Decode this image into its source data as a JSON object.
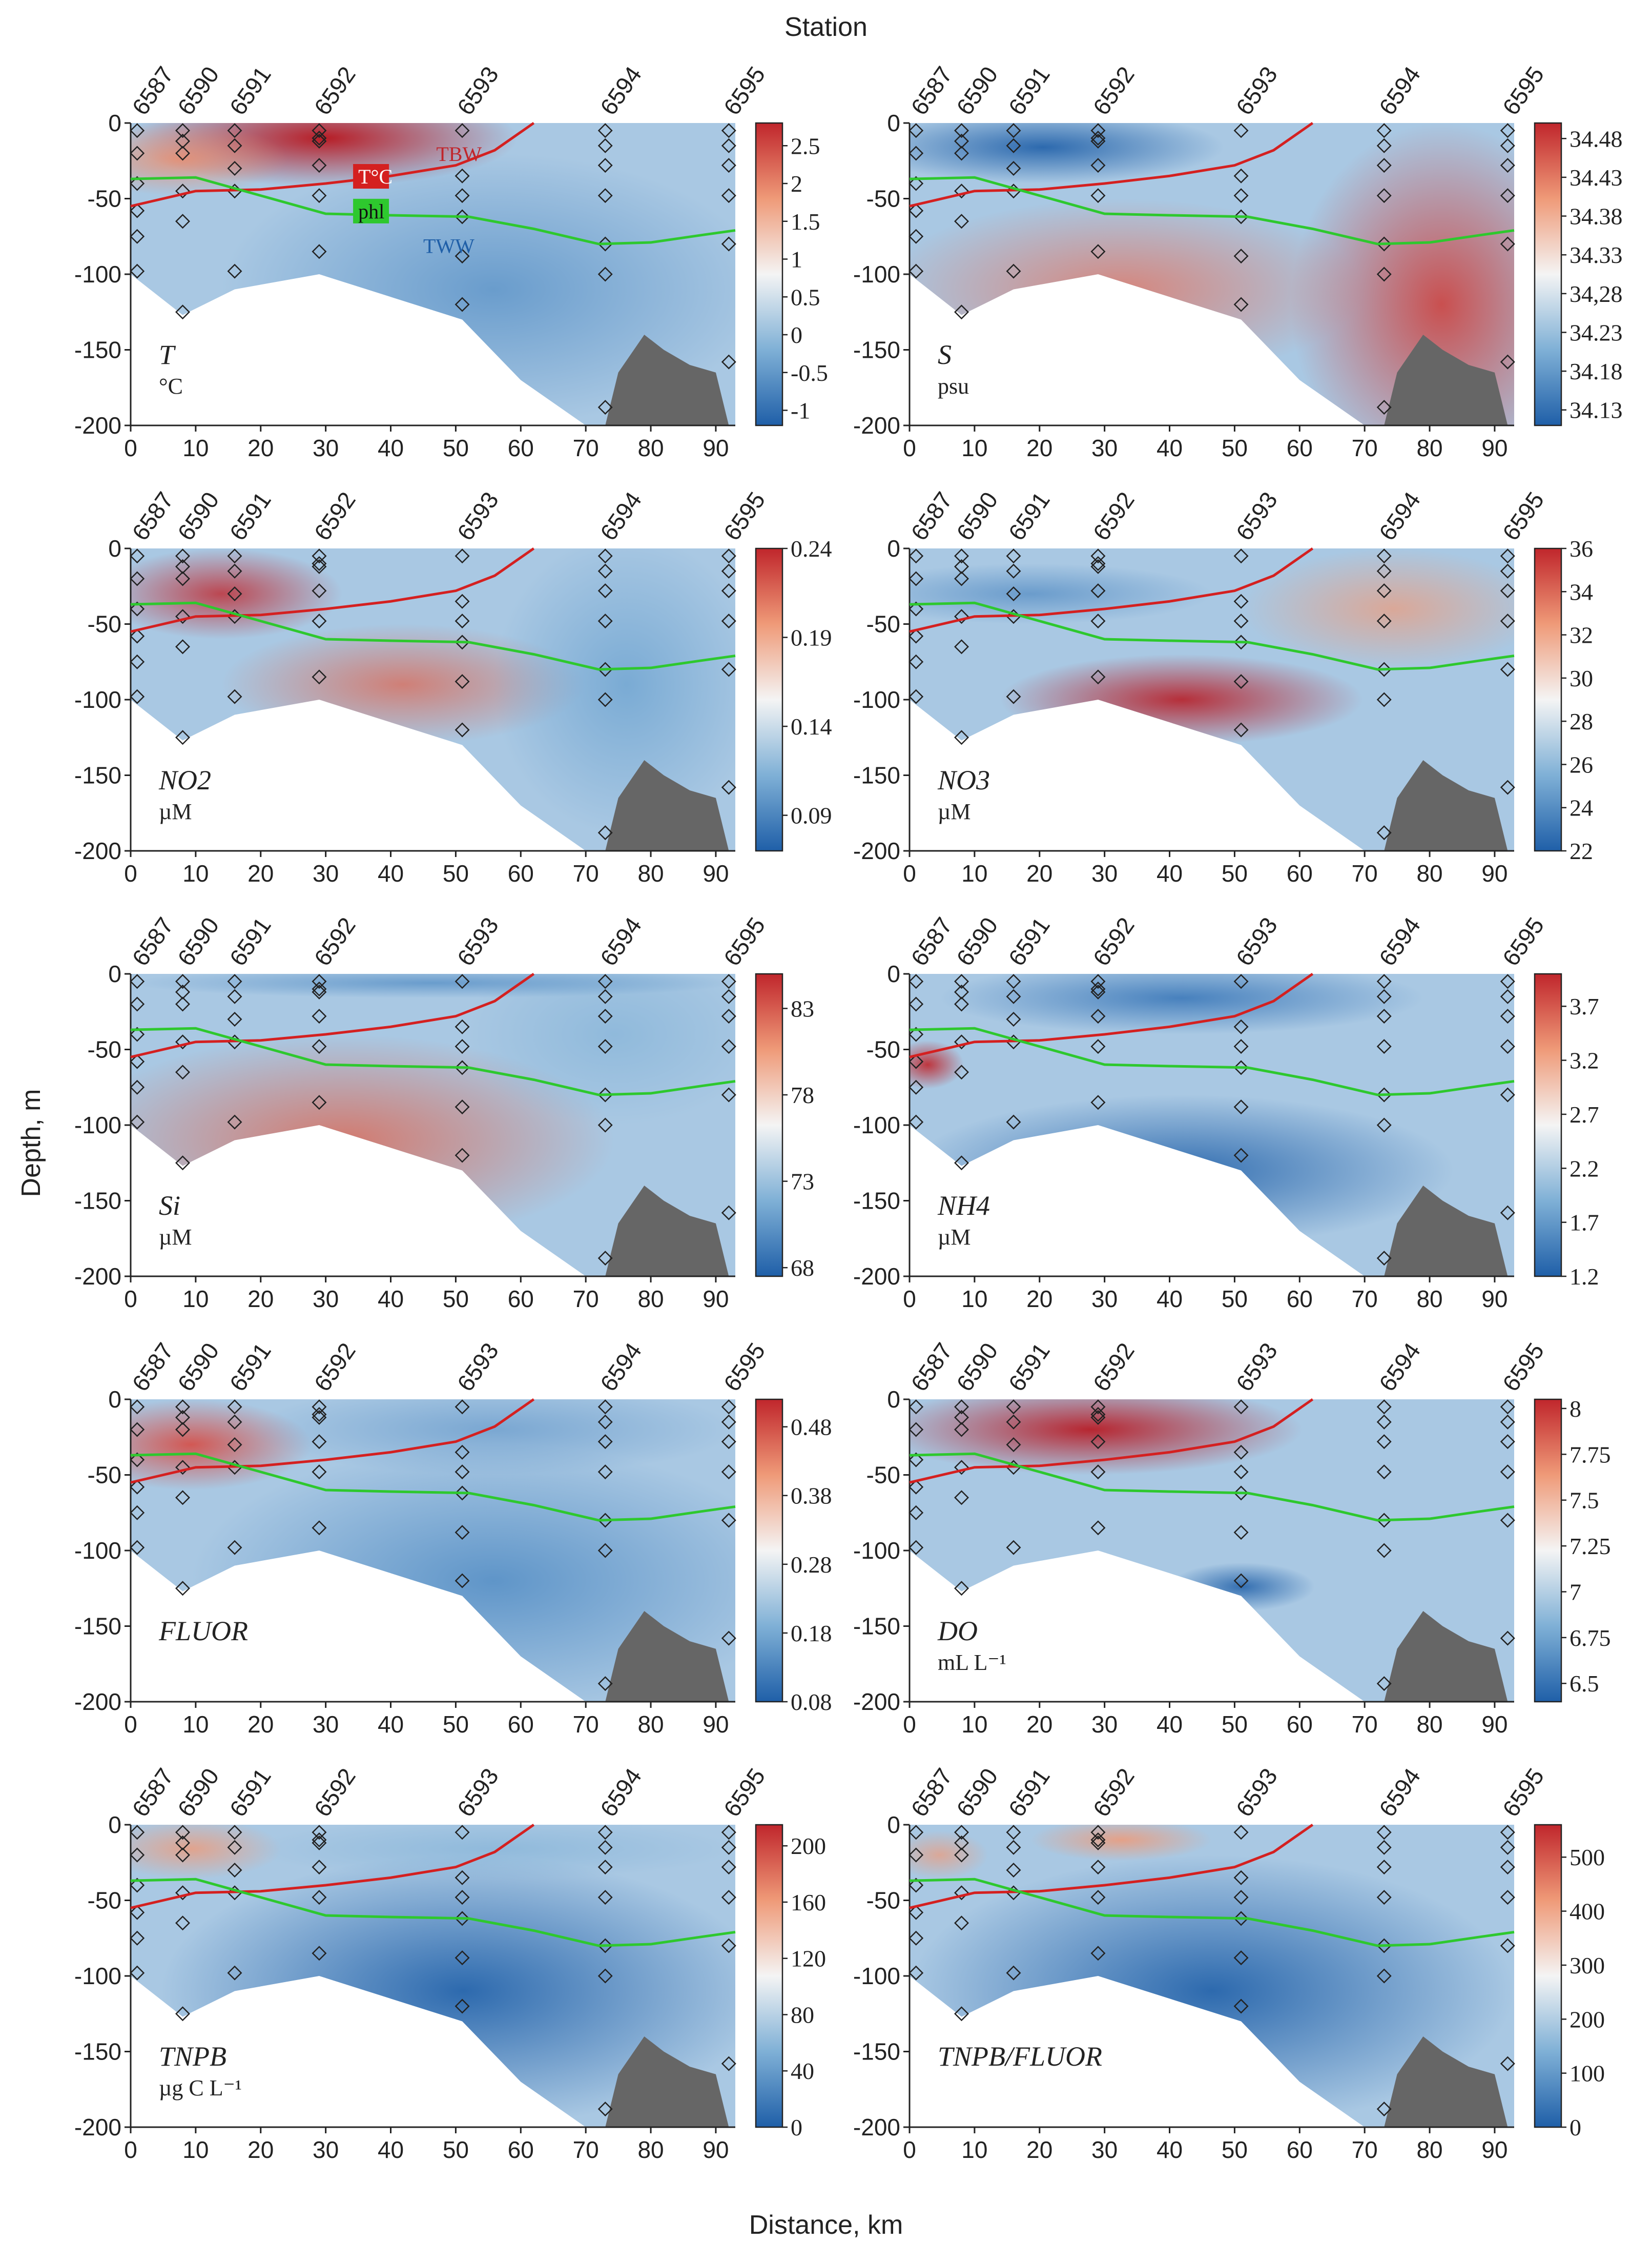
{
  "figure": {
    "top_label": "Station",
    "x_axis_label": "Distance, km",
    "y_axis_label": "Depth, m",
    "colors": {
      "cold": "#1f5fa8",
      "mid": "#f4f4f4",
      "warm": "#c0262c",
      "terrain": "#666666",
      "tbw_line": "#d42020",
      "phl_line": "#2ec82e"
    }
  },
  "chart_data": [
    {
      "type": "heatmap",
      "panel": "T",
      "label": "T",
      "unit": "°C",
      "x": [
        0,
        10,
        20,
        30,
        40,
        50,
        60,
        70,
        80,
        90
      ],
      "xlim": [
        0,
        93
      ],
      "y_ticks": [
        0,
        -50,
        -100,
        -150,
        -200
      ],
      "ylim": [
        -200,
        0
      ],
      "colorbar_ticks": [
        "2.5",
        "2",
        "1.5",
        "1",
        "0.5",
        "0",
        "-0.5",
        "-1"
      ],
      "colorbar_range": [
        -1.2,
        2.8
      ],
      "stations": [
        {
          "name": "6587",
          "km": 1
        },
        {
          "name": "6590",
          "km": 8
        },
        {
          "name": "6591",
          "km": 16
        },
        {
          "name": "6592",
          "km": 29
        },
        {
          "name": "6593",
          "km": 51
        },
        {
          "name": "6594",
          "km": 73
        },
        {
          "name": "6595",
          "km": 92
        }
      ],
      "water_masses": [
        {
          "text": "TBW",
          "km": 47,
          "depth": -25,
          "color": "#c0262c",
          "boxed": false
        },
        {
          "text": "T°C",
          "km": 35,
          "depth": -40,
          "color": "#ffffff",
          "boxed": true,
          "box_color": "#d42020"
        },
        {
          "text": "phl",
          "km": 35,
          "depth": -63,
          "color": "#111111",
          "boxed": true,
          "box_color": "#2ec82e"
        },
        {
          "text": "TWW",
          "km": 45,
          "depth": -86,
          "color": "#1f5fa8",
          "boxed": false
        }
      ]
    },
    {
      "type": "heatmap",
      "panel": "S",
      "label": "S",
      "unit": "psu",
      "x": [
        0,
        10,
        20,
        30,
        40,
        50,
        60,
        70,
        80,
        90
      ],
      "ylim": [
        -200,
        0
      ],
      "y_ticks": [
        0,
        -50,
        -100,
        -150,
        -200
      ],
      "colorbar_ticks": [
        "34.48",
        "34.43",
        "34.38",
        "34.33",
        "34,28",
        "34.23",
        "34.18",
        "34.13"
      ],
      "colorbar_range": [
        34.11,
        34.5
      ]
    },
    {
      "type": "heatmap",
      "panel": "NO2",
      "label": "NO2",
      "unit": "µM",
      "x": [
        0,
        10,
        20,
        30,
        40,
        50,
        60,
        70,
        80,
        90
      ],
      "ylim": [
        -200,
        0
      ],
      "y_ticks": [
        0,
        -50,
        -100,
        -150,
        -200
      ],
      "colorbar_ticks": [
        "0.24",
        "0.19",
        "0.14",
        "0.09"
      ],
      "colorbar_range": [
        0.07,
        0.24
      ]
    },
    {
      "type": "heatmap",
      "panel": "NO3",
      "label": "NO3",
      "unit": "µM",
      "x": [
        0,
        10,
        20,
        30,
        40,
        50,
        60,
        70,
        80,
        90
      ],
      "ylim": [
        -200,
        0
      ],
      "y_ticks": [
        0,
        -50,
        -100,
        -150,
        -200
      ],
      "colorbar_ticks": [
        "36",
        "34",
        "32",
        "30",
        "28",
        "26",
        "24",
        "22"
      ],
      "colorbar_range": [
        22,
        36
      ]
    },
    {
      "type": "heatmap",
      "panel": "Si",
      "label": "Si",
      "unit": "µM",
      "x": [
        0,
        10,
        20,
        30,
        40,
        50,
        60,
        70,
        80,
        90
      ],
      "ylim": [
        -200,
        0
      ],
      "y_ticks": [
        0,
        -50,
        -100,
        -150,
        -200
      ],
      "colorbar_ticks": [
        "83",
        "78",
        "73",
        "68"
      ],
      "colorbar_range": [
        67.5,
        85
      ]
    },
    {
      "type": "heatmap",
      "panel": "NH4",
      "label": "NH4",
      "unit": "µM",
      "x": [
        0,
        10,
        20,
        30,
        40,
        50,
        60,
        70,
        80,
        90
      ],
      "ylim": [
        -200,
        0
      ],
      "y_ticks": [
        0,
        -50,
        -100,
        -150,
        -200
      ],
      "colorbar_ticks": [
        "3.7",
        "3.2",
        "2.7",
        "2.2",
        "1.7",
        "1.2"
      ],
      "colorbar_range": [
        1.2,
        4.0
      ]
    },
    {
      "type": "heatmap",
      "panel": "FLUOR",
      "label": "FLUOR",
      "unit": "",
      "x": [
        0,
        10,
        20,
        30,
        40,
        50,
        60,
        70,
        80,
        90
      ],
      "ylim": [
        -200,
        0
      ],
      "y_ticks": [
        0,
        -50,
        -100,
        -150,
        -200
      ],
      "colorbar_ticks": [
        "0.48",
        "0.38",
        "0.28",
        "0.18",
        "0.08"
      ],
      "colorbar_range": [
        0.08,
        0.52
      ]
    },
    {
      "type": "heatmap",
      "panel": "DO",
      "label": "DO",
      "unit": "mL L⁻¹",
      "x": [
        0,
        10,
        20,
        30,
        40,
        50,
        60,
        70,
        80,
        90
      ],
      "ylim": [
        -200,
        0
      ],
      "y_ticks": [
        0,
        -50,
        -100,
        -150,
        -200
      ],
      "colorbar_ticks": [
        "8",
        "7.75",
        "7.5",
        "7.25",
        "7",
        "6.75",
        "6.5"
      ],
      "colorbar_range": [
        6.4,
        8.05
      ]
    },
    {
      "type": "heatmap",
      "panel": "TNPB",
      "label": "TNPB",
      "unit": "µg C L⁻¹",
      "x": [
        0,
        10,
        20,
        30,
        40,
        50,
        60,
        70,
        80,
        90
      ],
      "ylim": [
        -200,
        0
      ],
      "y_ticks": [
        0,
        -50,
        -100,
        -150,
        -200
      ],
      "colorbar_ticks": [
        "200",
        "160",
        "120",
        "80",
        "40",
        "0"
      ],
      "colorbar_range": [
        0,
        215
      ]
    },
    {
      "type": "heatmap",
      "panel": "TNPB/FLUOR",
      "label": "TNPB/FLUOR",
      "unit": "",
      "x": [
        0,
        10,
        20,
        30,
        40,
        50,
        60,
        70,
        80,
        90
      ],
      "ylim": [
        -200,
        0
      ],
      "y_ticks": [
        0,
        -50,
        -100,
        -150,
        -200
      ],
      "colorbar_ticks": [
        "500",
        "400",
        "300",
        "200",
        "100",
        "0"
      ],
      "colorbar_range": [
        0,
        560
      ]
    }
  ]
}
